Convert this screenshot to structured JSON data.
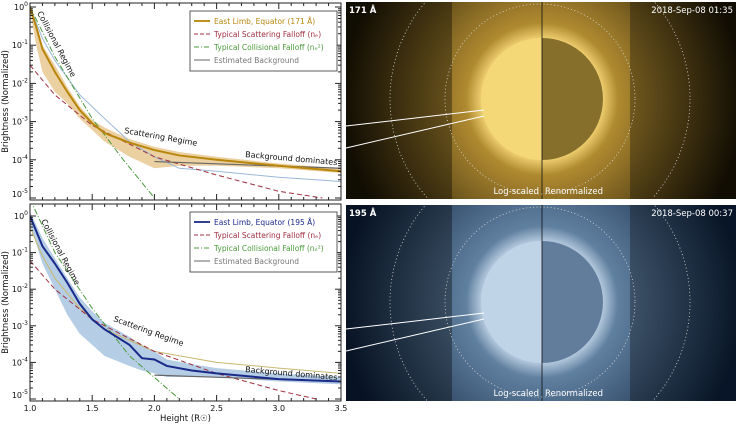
{
  "chart_data": [
    {
      "type": "line",
      "panel": "top",
      "ylabel": "Brightness (Normalized)",
      "xlim": [
        1.0,
        3.5
      ],
      "ylim": [
        1e-05,
        1.5
      ],
      "yscale": "log",
      "y_ticks": [
        "10^0",
        "10^-1",
        "10^-2",
        "10^-3",
        "10^-4",
        "10^-5"
      ],
      "legend_position": "top-right",
      "legend": [
        {
          "label": "East Limb, Equator (171 Å)",
          "color": "#b8860b",
          "style": "solid"
        },
        {
          "label": "Typical Scattering Falloff (nₑ)",
          "color": "#a03040",
          "style": "dashed"
        },
        {
          "label": "Typical Collisional Falloff (nₑ²)",
          "color": "#4a9a3a",
          "style": "dashdot"
        },
        {
          "label": "Estimated Background",
          "color": "#666666",
          "style": "solid"
        }
      ],
      "annotations": [
        "Collisional Regime",
        "Scattering Regime",
        "Background dominates"
      ],
      "series": [
        {
          "name": "East Limb, Equator (171 Å)",
          "color": "#b8860b",
          "x": [
            1.0,
            1.05,
            1.1,
            1.2,
            1.3,
            1.4,
            1.5,
            1.6,
            1.8,
            2.0,
            2.2,
            2.5,
            3.0,
            3.5
          ],
          "y": [
            1,
            0.3,
            0.08,
            0.02,
            0.006,
            0.002,
            0.0009,
            0.0005,
            0.00028,
            0.00018,
            0.00013,
            0.0001,
            7e-05,
            5e-05
          ],
          "band_low": [
            0.8,
            0.1,
            0.02,
            0.006,
            0.003,
            0.0012,
            0.0006,
            0.0003,
            0.00012,
            6e-05,
            7e-05,
            7e-05,
            6e-05,
            4.5e-05
          ],
          "band_high": [
            1.2,
            0.4,
            0.1,
            0.03,
            0.008,
            0.0025,
            0.0011,
            0.0007,
            0.00035,
            0.00022,
            0.00016,
            0.00012,
            8e-05,
            6e-05
          ]
        },
        {
          "name": "Typical Scattering Falloff (nₑ)",
          "color": "#a03040",
          "x": [
            1.0,
            1.2,
            1.5,
            2.0,
            2.5,
            3.0,
            3.35
          ],
          "y": [
            0.03,
            0.005,
            0.0008,
            0.00012,
            4e-05,
            1.5e-05,
            1e-05
          ]
        },
        {
          "name": "Typical Collisional Falloff (nₑ²)",
          "color": "#4a9a3a",
          "x": [
            1.0,
            1.2,
            1.5,
            1.75,
            2.0
          ],
          "y": [
            1,
            0.05,
            0.0012,
            0.0001,
            1e-05
          ]
        },
        {
          "name": "Estimated Background",
          "color": "#666666",
          "x": [
            2.0,
            3.5
          ],
          "y": [
            9e-05,
            6e-05
          ]
        },
        {
          "color": "#9ab8d8",
          "x": [
            1.0,
            1.1,
            1.2,
            1.4,
            1.6,
            1.8,
            2.0,
            2.2,
            2.5,
            3.0,
            3.5
          ],
          "y": [
            1,
            0.15,
            0.04,
            0.005,
            0.0012,
            0.0003,
            0.00012,
            6e-05,
            5e-05,
            3.5e-05,
            2.7e-05
          ]
        }
      ]
    },
    {
      "type": "line",
      "panel": "bottom",
      "xlabel": "Height (R☉)",
      "ylabel": "Brightness (Normalized)",
      "xlim": [
        1.0,
        3.5
      ],
      "ylim": [
        1e-05,
        1.5
      ],
      "yscale": "log",
      "x_ticks": [
        "1.0",
        "1.5",
        "2.0",
        "2.5",
        "3.0",
        "3.5"
      ],
      "y_ticks": [
        "10^0",
        "10^-1",
        "10^-2",
        "10^-3",
        "10^-4",
        "10^-5"
      ],
      "legend_position": "top-right",
      "legend": [
        {
          "label": "East Limb, Equator (195 Å)",
          "color": "#1a2a8a",
          "style": "solid"
        },
        {
          "label": "Typical Scattering Falloff (nₑ)",
          "color": "#a03040",
          "style": "dashed"
        },
        {
          "label": "Typical Collisional Falloff (nₑ²)",
          "color": "#4a9a3a",
          "style": "dashdot"
        },
        {
          "label": "Estimated Background",
          "color": "#666666",
          "style": "solid"
        }
      ],
      "annotations": [
        "Collisional Regime",
        "Scattering Regime",
        "Background dominates"
      ],
      "series": [
        {
          "name": "East Limb, Equator (195 Å)",
          "color": "#1a2a8a",
          "x": [
            1.0,
            1.1,
            1.2,
            1.3,
            1.4,
            1.5,
            1.6,
            1.8,
            1.9,
            2.0,
            2.1,
            2.3,
            2.5,
            3.0,
            3.5
          ],
          "y": [
            1,
            0.15,
            0.05,
            0.015,
            0.004,
            0.0015,
            0.0008,
            0.0003,
            0.00013,
            0.00012,
            8e-05,
            6e-05,
            5e-05,
            3.5e-05,
            3e-05
          ],
          "band_low": [
            0.6,
            0.05,
            0.01,
            0.002,
            0.0006,
            0.0003,
            0.00015,
            8e-05,
            6e-05,
            5e-05,
            4e-05,
            4e-05,
            4e-05,
            3e-05,
            2.5e-05
          ],
          "band_high": [
            1.3,
            0.25,
            0.07,
            0.02,
            0.006,
            0.0025,
            0.0012,
            0.0005,
            0.0003,
            0.0002,
            0.00012,
            9e-05,
            7e-05,
            5e-05,
            4e-05
          ]
        },
        {
          "name": "Typical Scattering Falloff (nₑ)",
          "color": "#a03040",
          "x": [
            1.0,
            1.2,
            1.5,
            2.0,
            2.5,
            3.0,
            3.3
          ],
          "y": [
            0.06,
            0.01,
            0.0015,
            0.0002,
            5e-05,
            1.7e-05,
            1e-05
          ]
        },
        {
          "name": "Typical Collisional Falloff (nₑ²)",
          "color": "#4a9a3a",
          "x": [
            1.0,
            1.2,
            1.5,
            1.8,
            2.2
          ],
          "y": [
            3,
            0.1,
            0.003,
            0.00015,
            1e-05
          ]
        },
        {
          "name": "Estimated Background",
          "color": "#666666",
          "x": [
            2.0,
            3.5
          ],
          "y": [
            4.5e-05,
            3e-05
          ]
        },
        {
          "color": "#c8b870",
          "x": [
            1.0,
            1.1,
            1.2,
            1.4,
            1.6,
            1.8,
            2.0,
            2.5,
            3.0,
            3.5
          ],
          "y": [
            0.5,
            0.08,
            0.02,
            0.003,
            0.0008,
            0.0004,
            0.0002,
            0.0001,
            7e-05,
            5e-05
          ]
        }
      ]
    }
  ],
  "images": [
    {
      "wavelength": "171 Å",
      "timestamp": "2018-Sep-08 01:35",
      "left_label": "Log-scaled",
      "right_label": "Renormalized",
      "tint": "#e8c060"
    },
    {
      "wavelength": "195 Å",
      "timestamp": "2018-Sep-08 00:37",
      "left_label": "Log-scaled",
      "right_label": "Renormalized",
      "tint": "#c8dcf0"
    }
  ]
}
